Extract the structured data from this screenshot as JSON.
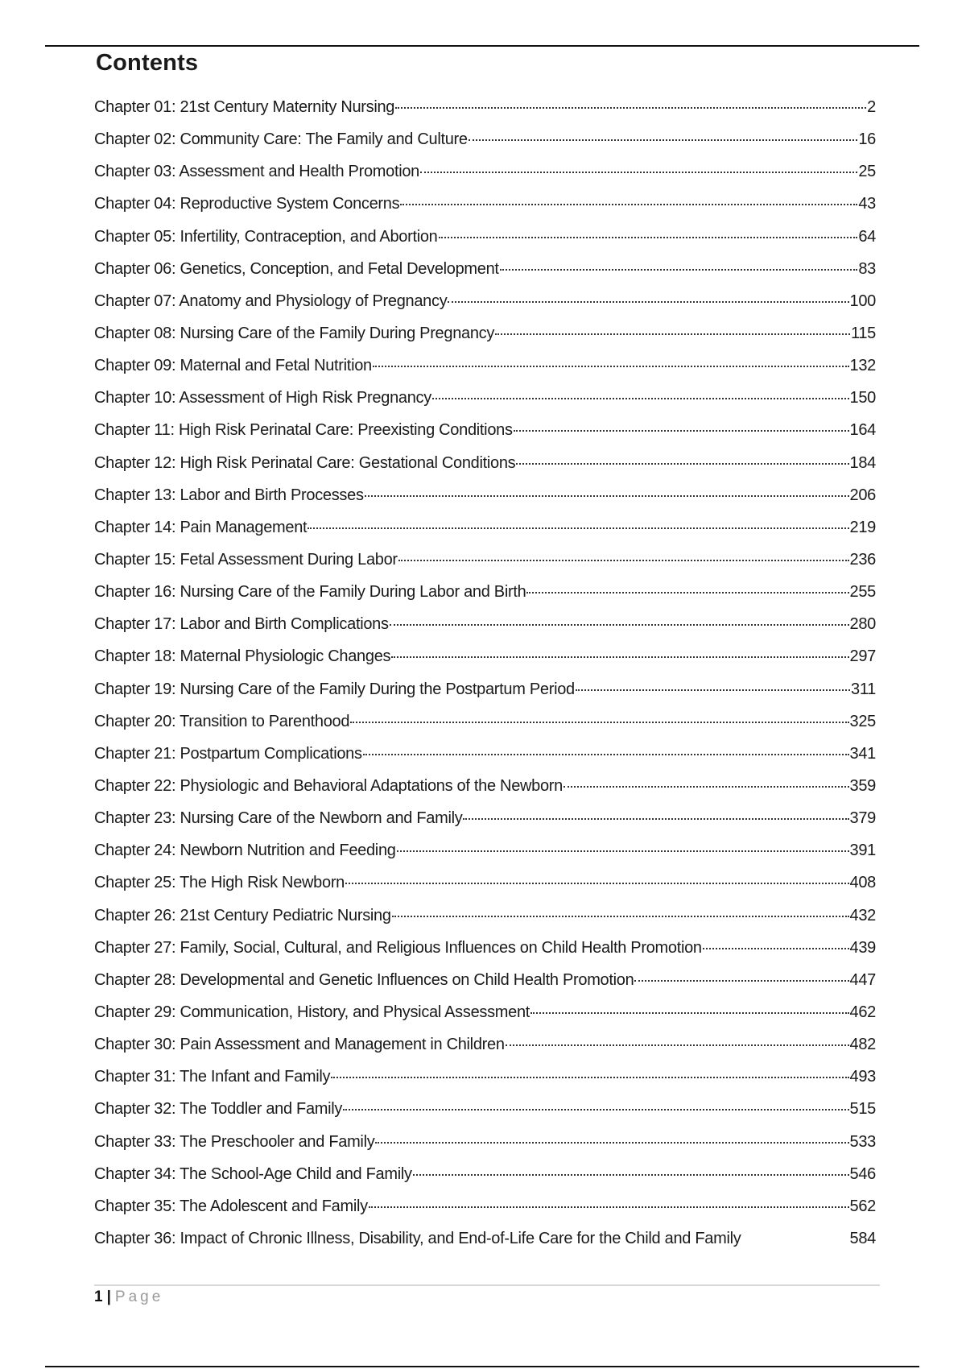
{
  "document": {
    "title": "Contents",
    "entries": [
      {
        "label": "Chapter 01: 21st Century Maternity Nursing",
        "page": "2"
      },
      {
        "label": "Chapter 02: Community Care: The Family and Culture",
        "page": "16"
      },
      {
        "label": "Chapter 03: Assessment and Health Promotion",
        "page": "25"
      },
      {
        "label": "Chapter 04: Reproductive System Concerns",
        "page": "43"
      },
      {
        "label": "Chapter 05: Infertility, Contraception, and Abortion",
        "page": "64"
      },
      {
        "label": "Chapter 06: Genetics, Conception, and Fetal Development",
        "page": "83"
      },
      {
        "label": "Chapter 07: Anatomy and Physiology of Pregnancy",
        "page": "100"
      },
      {
        "label": "Chapter 08: Nursing Care of the Family During Pregnancy",
        "page": "115"
      },
      {
        "label": "Chapter 09: Maternal and Fetal Nutrition",
        "page": "132"
      },
      {
        "label": "Chapter 10: Assessment of High Risk Pregnancy",
        "page": "150"
      },
      {
        "label": "Chapter 11: High Risk Perinatal Care: Preexisting Conditions",
        "page": "164"
      },
      {
        "label": "Chapter 12: High Risk Perinatal Care: Gestational Conditions",
        "page": "184"
      },
      {
        "label": "Chapter 13: Labor and Birth Processes",
        "page": "206"
      },
      {
        "label": "Chapter 14: Pain Management",
        "page": "219"
      },
      {
        "label": "Chapter 15: Fetal Assessment During Labor",
        "page": "236"
      },
      {
        "label": "Chapter 16: Nursing Care of the Family During Labor and Birth",
        "page": "255"
      },
      {
        "label": "Chapter 17: Labor and Birth Complications",
        "page": "280"
      },
      {
        "label": "Chapter 18: Maternal Physiologic Changes",
        "page": "297"
      },
      {
        "label": "Chapter 19: Nursing Care of the Family During the Postpartum Period",
        "page": "311"
      },
      {
        "label": "Chapter 20: Transition to Parenthood",
        "page": "325"
      },
      {
        "label": "Chapter 21: Postpartum Complications",
        "page": "341"
      },
      {
        "label": "Chapter 22: Physiologic and Behavioral Adaptations of the Newborn",
        "page": "359"
      },
      {
        "label": "Chapter 23: Nursing Care of the Newborn and Family",
        "page": "379"
      },
      {
        "label": "Chapter 24: Newborn Nutrition and Feeding",
        "page": "391"
      },
      {
        "label": "Chapter 25: The High Risk Newborn",
        "page": "408"
      },
      {
        "label": "Chapter 26: 21st Century Pediatric Nursing",
        "page": "432"
      },
      {
        "label": "Chapter 27: Family, Social, Cultural, and Religious Influences on Child Health Promotion",
        "page": "439"
      },
      {
        "label": "Chapter 28: Developmental and Genetic Influences on Child Health Promotion",
        "page": "447"
      },
      {
        "label": "Chapter 29: Communication, History, and Physical Assessment",
        "page": "462"
      },
      {
        "label": "Chapter 30: Pain Assessment and Management in Children",
        "page": "482"
      },
      {
        "label": "Chapter 31: The Infant and Family",
        "page": "493"
      },
      {
        "label": "Chapter 32: The Toddler and Family",
        "page": "515"
      },
      {
        "label": "Chapter 33: The Preschooler and Family",
        "page": "533"
      },
      {
        "label": "Chapter 34: The School-Age Child and Family",
        "page": "546"
      },
      {
        "label": "Chapter 35: The Adolescent and Family",
        "page": "562"
      },
      {
        "label": "Chapter 36: Impact of Chronic Illness, Disability, and End-of-Life Care for the Child and Family",
        "page": "584",
        "leader": false
      }
    ]
  },
  "footer": {
    "page_number": "1",
    "separator": "|",
    "page_word": "Page"
  }
}
